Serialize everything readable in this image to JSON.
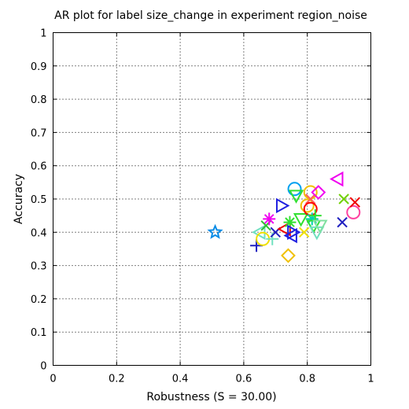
{
  "chart_data": {
    "type": "scatter",
    "title": "AR plot for label size_change in experiment region_noise",
    "xlabel": "Robustness (S = 30.00)",
    "ylabel": "Accuracy",
    "xlim": [
      0,
      1
    ],
    "ylim": [
      0,
      1
    ],
    "xticks": [
      "0",
      "0.2",
      "0.4",
      "0.6",
      "0.8",
      "1"
    ],
    "yticks": [
      "0",
      "0.1",
      "0.2",
      "0.3",
      "0.4",
      "0.5",
      "0.6",
      "0.7",
      "0.8",
      "0.9",
      "1"
    ],
    "grid": true,
    "points": [
      {
        "x": 0.51,
        "y": 0.4,
        "marker": "star",
        "color": "#0a8ce6"
      },
      {
        "x": 0.64,
        "y": 0.36,
        "marker": "plus",
        "color": "#2020c0"
      },
      {
        "x": 0.65,
        "y": 0.4,
        "marker": "triangle-left",
        "color": "#70e0c0"
      },
      {
        "x": 0.66,
        "y": 0.38,
        "marker": "circle",
        "color": "#f0e000"
      },
      {
        "x": 0.67,
        "y": 0.42,
        "marker": "x",
        "color": "#30c030"
      },
      {
        "x": 0.68,
        "y": 0.44,
        "marker": "asterisk",
        "color": "#f000f0"
      },
      {
        "x": 0.69,
        "y": 0.38,
        "marker": "plus",
        "color": "#70e0c0"
      },
      {
        "x": 0.7,
        "y": 0.4,
        "marker": "x",
        "color": "#2020c0"
      },
      {
        "x": 0.72,
        "y": 0.48,
        "marker": "triangle-right",
        "color": "#2020e0"
      },
      {
        "x": 0.73,
        "y": 0.41,
        "marker": "triangle-left",
        "color": "#f00000"
      },
      {
        "x": 0.74,
        "y": 0.33,
        "marker": "diamond",
        "color": "#f0c000"
      },
      {
        "x": 0.745,
        "y": 0.43,
        "marker": "asterisk",
        "color": "#30e030"
      },
      {
        "x": 0.75,
        "y": 0.39,
        "marker": "triangle-left",
        "color": "#2020e0"
      },
      {
        "x": 0.755,
        "y": 0.4,
        "marker": "triangle-right",
        "color": "#2020e0"
      },
      {
        "x": 0.76,
        "y": 0.53,
        "marker": "circle",
        "color": "#00a0f0"
      },
      {
        "x": 0.765,
        "y": 0.51,
        "marker": "triangle-down",
        "color": "#30e030"
      },
      {
        "x": 0.78,
        "y": 0.44,
        "marker": "triangle-down",
        "color": "#30e030"
      },
      {
        "x": 0.79,
        "y": 0.4,
        "marker": "x",
        "color": "#f0e000"
      },
      {
        "x": 0.8,
        "y": 0.48,
        "marker": "circle",
        "color": "#f0c000"
      },
      {
        "x": 0.81,
        "y": 0.52,
        "marker": "circle",
        "color": "#f0c000"
      },
      {
        "x": 0.81,
        "y": 0.5,
        "marker": "x",
        "color": "#ff6060"
      },
      {
        "x": 0.81,
        "y": 0.47,
        "marker": "circle",
        "color": "#ff0000"
      },
      {
        "x": 0.815,
        "y": 0.44,
        "marker": "asterisk",
        "color": "#00d0b0"
      },
      {
        "x": 0.82,
        "y": 0.42,
        "marker": "triangle-down",
        "color": "#30e030"
      },
      {
        "x": 0.825,
        "y": 0.45,
        "marker": "plus",
        "color": "#30e030"
      },
      {
        "x": 0.83,
        "y": 0.4,
        "marker": "triangle-down",
        "color": "#70e0c0"
      },
      {
        "x": 0.835,
        "y": 0.52,
        "marker": "diamond",
        "color": "#f000f0"
      },
      {
        "x": 0.84,
        "y": 0.42,
        "marker": "triangle-down",
        "color": "#80e0a0"
      },
      {
        "x": 0.895,
        "y": 0.56,
        "marker": "triangle-left",
        "color": "#f000f0"
      },
      {
        "x": 0.91,
        "y": 0.43,
        "marker": "x",
        "color": "#2020c0"
      },
      {
        "x": 0.915,
        "y": 0.5,
        "marker": "x",
        "color": "#70d000"
      },
      {
        "x": 0.945,
        "y": 0.46,
        "marker": "circle",
        "color": "#ff40a0"
      },
      {
        "x": 0.95,
        "y": 0.49,
        "marker": "x",
        "color": "#f00000"
      }
    ]
  }
}
